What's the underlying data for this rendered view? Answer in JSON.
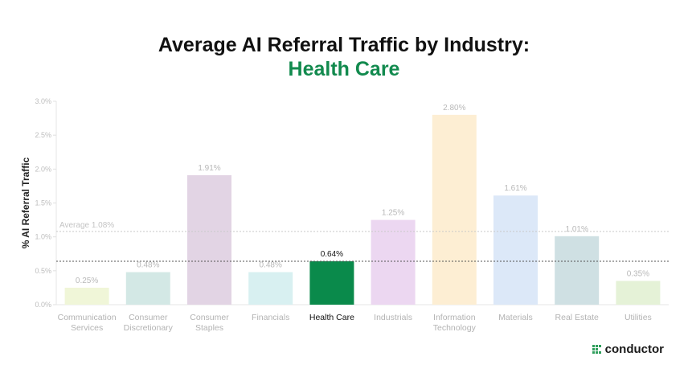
{
  "title_line1": "Average AI Referral Traffic by Industry:",
  "title_line2": "Health Care",
  "brand": "conductor",
  "colors": {
    "highlight_title": "#128a4e",
    "average_line": "#c9c9c9",
    "highlight_line": "#555555"
  },
  "chart_data": {
    "type": "bar",
    "ylabel": "% AI Referral Traffic",
    "ylim": [
      0,
      3.0
    ],
    "yticks": [
      "0.0%",
      "0.5%",
      "1.0%",
      "1.5%",
      "2.0%",
      "2.5%",
      "3.0%"
    ],
    "ytick_values": [
      0,
      0.5,
      1.0,
      1.5,
      2.0,
      2.5,
      3.0
    ],
    "categories": [
      [
        "Communication",
        "Services"
      ],
      [
        "Consumer",
        "Discretionary"
      ],
      [
        "Consumer",
        "Staples"
      ],
      [
        "Financials"
      ],
      [
        "Health Care"
      ],
      [
        "Industrials"
      ],
      [
        "Information",
        "Technology"
      ],
      [
        "Materials"
      ],
      [
        "Real Estate"
      ],
      [
        "Utilities"
      ]
    ],
    "values": [
      0.25,
      0.48,
      1.91,
      0.48,
      0.64,
      1.25,
      2.8,
      1.61,
      1.01,
      0.35
    ],
    "data_labels": [
      "0.25%",
      "0.48%",
      "1.91%",
      "0.48%",
      "0.64%",
      "1.25%",
      "2.80%",
      "1.61%",
      "1.01%",
      "0.35%"
    ],
    "bar_colors": [
      "#f0f6d8",
      "#d3e8e5",
      "#e2d4e4",
      "#d8f0f1",
      "#0a8a4b",
      "#ecd7f1",
      "#fdeed3",
      "#dce8f8",
      "#cfe0e3",
      "#e5f2d7"
    ],
    "highlight_index": 4,
    "average": 1.08,
    "average_label": "Average 1.08%",
    "highlight_line_value": 0.64,
    "grid": false
  }
}
